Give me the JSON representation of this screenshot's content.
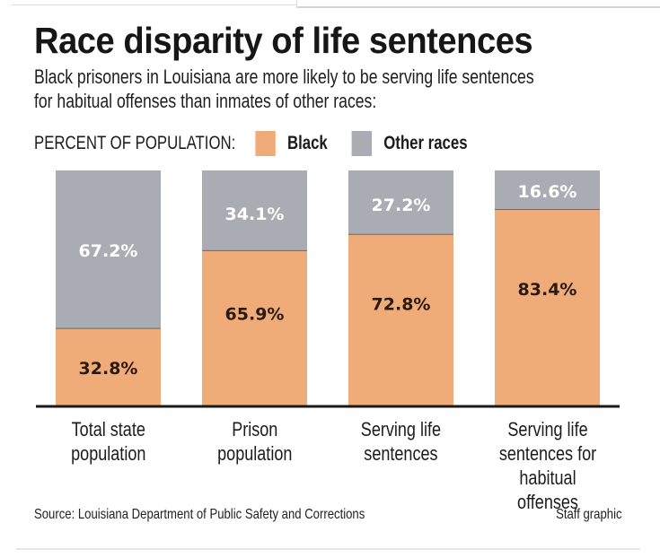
{
  "colors": {
    "black_series": "#F0AC78",
    "other_series": "#A9ACB3",
    "baseline": "#1a1a1a",
    "label_on_orange": "#2a1a12",
    "label_on_gray": "#ffffff"
  },
  "header": {
    "title": "Race disparity of life sentences",
    "subtitle_line1": "Black prisoners in Louisiana are more likely to be serving life sentences",
    "subtitle_line2": "for habitual offenses than inmates of other races:"
  },
  "legend": {
    "label": "PERCENT OF POPULATION:",
    "items": [
      {
        "name": "Black"
      },
      {
        "name": "Other races"
      }
    ]
  },
  "footer": {
    "source": "Source: Louisiana Department of Public Safety and Corrections",
    "credit": "Staff graphic"
  },
  "chart_data": {
    "type": "bar",
    "stacked": true,
    "title": "Race disparity of life sentences",
    "subtitle": "Black prisoners in Louisiana are more likely to be serving life sentences for habitual offenses than inmates of other races:",
    "legend_title": "PERCENT OF POPULATION:",
    "legend_position": "top-left",
    "xlabel": "",
    "ylabel": "",
    "ylim": [
      0,
      100
    ],
    "grid": false,
    "categories": [
      "Total state\npopulation",
      "Prison\npopulation",
      "Serving life\nsentences",
      "Serving life\nsentences for\nhabitual offenses"
    ],
    "series": [
      {
        "name": "Black",
        "values": [
          32.8,
          65.9,
          72.8,
          83.4
        ],
        "labels": [
          "32.8%",
          "65.9%",
          "72.8%",
          "83.4%"
        ]
      },
      {
        "name": "Other races",
        "values": [
          67.2,
          34.1,
          27.2,
          16.6
        ],
        "labels": [
          "67.2%",
          "34.1%",
          "27.2%",
          "16.6%"
        ]
      }
    ]
  }
}
